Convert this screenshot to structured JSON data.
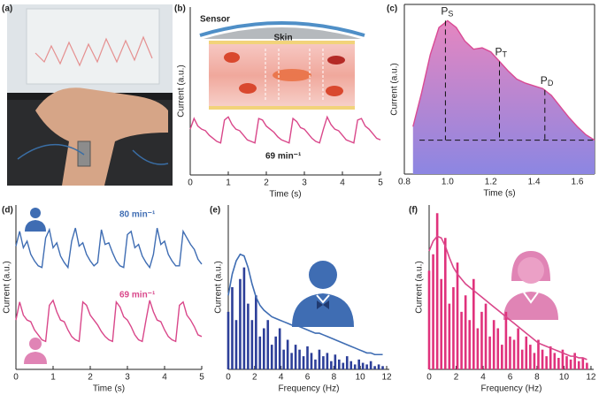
{
  "photo": {
    "panel_label": "(a)"
  },
  "chart_data": [
    {
      "type": "line",
      "panel_label": "(b)",
      "xlabel": "Time (s)",
      "ylabel": "Current (a.u.)",
      "illustration": {
        "sensor": "Sensor",
        "skin": "Skin"
      },
      "annotation": "69 min⁻¹",
      "xlim": [
        0,
        5
      ],
      "xticks": [
        0,
        1,
        2,
        3,
        4,
        5
      ],
      "ylim": [
        -0.1,
        1
      ],
      "x": [
        0,
        0.1,
        0.2,
        0.3,
        0.4,
        0.5,
        0.6,
        0.7,
        0.8,
        0.9,
        1,
        1.1,
        1.2,
        1.3,
        1.4,
        1.5,
        1.6,
        1.7,
        1.8,
        1.9,
        2,
        2.1,
        2.2,
        2.3,
        2.4,
        2.5,
        2.6,
        2.7,
        2.8,
        2.9,
        3,
        3.1,
        3.2,
        3.3,
        3.4,
        3.5,
        3.6,
        3.7,
        3.8,
        3.9,
        4,
        4.1,
        4.2,
        4.3,
        4.4,
        4.5,
        4.6,
        4.7,
        4.8,
        4.9,
        5
      ],
      "series": [
        {
          "color": "#d9478a",
          "values": [
            0.2,
            0.27,
            0.22,
            0.2,
            0.19,
            0.16,
            0.14,
            0.12,
            0.11,
            0.26,
            0.28,
            0.23,
            0.2,
            0.19,
            0.16,
            0.13,
            0.12,
            0.11,
            0.27,
            0.26,
            0.22,
            0.2,
            0.18,
            0.15,
            0.13,
            0.12,
            0.11,
            0.27,
            0.25,
            0.21,
            0.2,
            0.17,
            0.14,
            0.12,
            0.11,
            0.2,
            0.28,
            0.23,
            0.2,
            0.19,
            0.16,
            0.13,
            0.12,
            0.11,
            0.26,
            0.27,
            0.22,
            0.2,
            0.17,
            0.14,
            0.13
          ]
        }
      ]
    },
    {
      "type": "area",
      "panel_label": "(c)",
      "xlabel": "Time (s)",
      "ylabel": "Current (a.u.)",
      "xlim": [
        0.8,
        1.68
      ],
      "xticks": [
        0.8,
        {
          "value": 1,
          "label": "1.0"
        },
        1.2,
        1.4,
        1.6
      ],
      "ylim": [
        -0.2,
        1.05
      ],
      "x": [
        0.84,
        0.88,
        0.92,
        0.96,
        1,
        1.04,
        1.08,
        1.12,
        1.16,
        1.2,
        1.24,
        1.28,
        1.32,
        1.36,
        1.4,
        1.44,
        1.48,
        1.52,
        1.56,
        1.6,
        1.64,
        1.68
      ],
      "series": [
        {
          "color": "#d94a94",
          "values": [
            0.15,
            0.4,
            0.68,
            0.88,
            0.93,
            0.88,
            0.78,
            0.72,
            0.73,
            0.7,
            0.63,
            0.56,
            0.5,
            0.47,
            0.45,
            0.43,
            0.38,
            0.3,
            0.22,
            0.15,
            0.09,
            0.05
          ]
        }
      ],
      "area_colors": [
        "#e586c0",
        "#8c86e2"
      ],
      "markers": [
        {
          "label": "P",
          "sub": "S",
          "x": 0.99,
          "y": 0.93
        },
        {
          "label": "P",
          "sub": "T",
          "x": 1.24,
          "y": 0.63
        },
        {
          "label": "P",
          "sub": "D",
          "x": 1.45,
          "y": 0.42
        }
      ],
      "baseline_y": 0.05,
      "baseline_x": [
        0.87,
        1.68
      ]
    },
    {
      "type": "line",
      "panel_label": "(d)",
      "xlabel": "Time (s)",
      "ylabel": "Current (a.u.)",
      "xlim": [
        0,
        5
      ],
      "xticks": [
        0,
        1,
        2,
        3,
        4,
        5
      ],
      "ylim": [
        0,
        1
      ],
      "x": [
        0,
        0.1,
        0.2,
        0.3,
        0.4,
        0.5,
        0.6,
        0.7,
        0.8,
        0.9,
        1,
        1.1,
        1.2,
        1.3,
        1.4,
        1.5,
        1.6,
        1.7,
        1.8,
        1.9,
        2,
        2.1,
        2.2,
        2.3,
        2.4,
        2.5,
        2.6,
        2.7,
        2.8,
        2.9,
        3,
        3.1,
        3.2,
        3.3,
        3.4,
        3.5,
        3.6,
        3.7,
        3.8,
        3.9,
        4,
        4.1,
        4.2,
        4.3,
        4.4,
        4.5,
        4.6,
        4.7,
        4.8,
        4.9,
        5
      ],
      "series": [
        {
          "color": "#3f6db3",
          "label": "80 min⁻¹",
          "values": [
            0.75,
            0.84,
            0.74,
            0.78,
            0.7,
            0.66,
            0.63,
            0.62,
            0.8,
            0.85,
            0.74,
            0.77,
            0.69,
            0.65,
            0.62,
            0.78,
            0.86,
            0.75,
            0.77,
            0.7,
            0.66,
            0.63,
            0.65,
            0.85,
            0.76,
            0.77,
            0.71,
            0.66,
            0.63,
            0.62,
            0.82,
            0.84,
            0.74,
            0.76,
            0.69,
            0.65,
            0.62,
            0.7,
            0.86,
            0.76,
            0.78,
            0.7,
            0.66,
            0.63,
            0.63,
            0.84,
            0.8,
            0.76,
            0.73,
            0.67,
            0.64
          ]
        },
        {
          "color": "#d9478a",
          "label": "69 min⁻¹",
          "values": [
            0.3,
            0.41,
            0.33,
            0.3,
            0.29,
            0.24,
            0.21,
            0.18,
            0.17,
            0.39,
            0.42,
            0.35,
            0.3,
            0.29,
            0.24,
            0.2,
            0.18,
            0.17,
            0.41,
            0.39,
            0.33,
            0.3,
            0.27,
            0.23,
            0.2,
            0.18,
            0.17,
            0.41,
            0.38,
            0.32,
            0.3,
            0.26,
            0.21,
            0.18,
            0.17,
            0.3,
            0.42,
            0.35,
            0.3,
            0.29,
            0.24,
            0.2,
            0.18,
            0.17,
            0.39,
            0.41,
            0.33,
            0.3,
            0.26,
            0.21,
            0.2
          ]
        }
      ]
    },
    {
      "type": "spectrum",
      "panel_label": "(e)",
      "xlabel": "Frequency (Hz)",
      "ylabel": "Current (a.u.)",
      "xlim": [
        0,
        12.2
      ],
      "xticks": [
        0,
        2,
        4,
        6,
        8,
        10,
        12
      ],
      "ylim": [
        0,
        1
      ],
      "x": [
        0,
        0.3,
        0.6,
        0.9,
        1.2,
        1.5,
        1.8,
        2.1,
        2.4,
        2.7,
        3,
        3.3,
        3.6,
        3.9,
        4.2,
        4.5,
        4.8,
        5.1,
        5.4,
        5.7,
        6,
        6.3,
        6.6,
        6.9,
        7.2,
        7.5,
        7.8,
        8.1,
        8.4,
        8.7,
        9,
        9.3,
        9.6,
        9.9,
        10.2,
        10.5,
        10.8,
        11.1,
        11.4,
        11.7
      ],
      "series": [
        {
          "kind": "bar",
          "color": "#2d3f99",
          "values": [
            0.35,
            0.5,
            0.3,
            0.55,
            0.62,
            0.4,
            0.3,
            0.45,
            0.2,
            0.25,
            0.3,
            0.15,
            0.2,
            0.25,
            0.12,
            0.18,
            0.1,
            0.15,
            0.12,
            0.08,
            0.14,
            0.1,
            0.06,
            0.12,
            0.08,
            0.1,
            0.05,
            0.09,
            0.06,
            0.04,
            0.08,
            0.05,
            0.03,
            0.06,
            0.04,
            0.03,
            0.05,
            0.02,
            0.03,
            0.02
          ]
        },
        {
          "kind": "line",
          "color": "#3f6db3",
          "values": [
            0.45,
            0.58,
            0.66,
            0.7,
            0.69,
            0.62,
            0.52,
            0.44,
            0.39,
            0.36,
            0.34,
            0.32,
            0.31,
            0.3,
            0.29,
            0.28,
            0.27,
            0.27,
            0.26,
            0.25,
            0.24,
            0.23,
            0.22,
            0.22,
            0.21,
            0.2,
            0.19,
            0.18,
            0.17,
            0.16,
            0.15,
            0.14,
            0.13,
            0.12,
            0.11,
            0.1,
            0.1,
            0.09,
            0.09,
            0.09
          ]
        }
      ]
    },
    {
      "type": "spectrum",
      "panel_label": "(f)",
      "xlabel": "Frequency (Hz)",
      "ylabel": "Current (a.u.)",
      "xlim": [
        0,
        12.2
      ],
      "xticks": [
        0,
        2,
        4,
        6,
        8,
        10,
        12
      ],
      "ylim": [
        0,
        1
      ],
      "x": [
        0,
        0.3,
        0.6,
        0.9,
        1.2,
        1.5,
        1.8,
        2.1,
        2.4,
        2.7,
        3,
        3.3,
        3.6,
        3.9,
        4.2,
        4.5,
        4.8,
        5.1,
        5.4,
        5.7,
        6,
        6.3,
        6.6,
        6.9,
        7.2,
        7.5,
        7.8,
        8.1,
        8.4,
        8.7,
        9,
        9.3,
        9.6,
        9.9,
        10.2,
        10.5,
        10.8,
        11.1,
        11.4,
        11.7
      ],
      "series": [
        {
          "kind": "bar",
          "color": "#e0327c",
          "values": [
            0.6,
            0.7,
            0.95,
            0.55,
            0.8,
            0.4,
            0.5,
            0.65,
            0.35,
            0.45,
            0.3,
            0.55,
            0.25,
            0.35,
            0.4,
            0.2,
            0.3,
            0.25,
            0.15,
            0.35,
            0.2,
            0.18,
            0.25,
            0.12,
            0.2,
            0.15,
            0.1,
            0.18,
            0.12,
            0.08,
            0.14,
            0.1,
            0.07,
            0.12,
            0.08,
            0.06,
            0.1,
            0.05,
            0.07,
            0.04
          ]
        },
        {
          "kind": "line",
          "color": "#d9478a",
          "values": [
            0.72,
            0.78,
            0.81,
            0.8,
            0.75,
            0.68,
            0.62,
            0.58,
            0.55,
            0.52,
            0.5,
            0.48,
            0.46,
            0.44,
            0.42,
            0.4,
            0.38,
            0.36,
            0.34,
            0.32,
            0.3,
            0.28,
            0.26,
            0.24,
            0.22,
            0.2,
            0.18,
            0.16,
            0.15,
            0.14,
            0.13,
            0.12,
            0.11,
            0.1,
            0.09,
            0.08,
            0.08,
            0.07,
            0.07,
            0.06
          ]
        }
      ]
    }
  ]
}
